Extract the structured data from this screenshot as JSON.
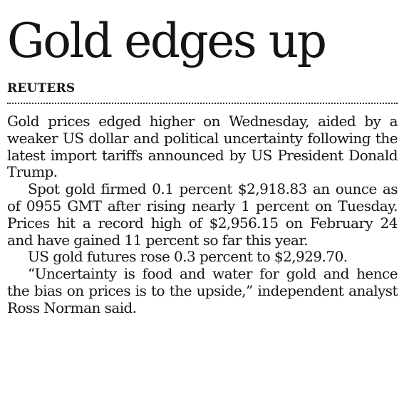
{
  "article": {
    "headline": "Gold edges up",
    "byline": "REUTERS",
    "paragraphs": [
      "Gold prices edged higher on Wednesday, aided by a weaker US dollar and political uncertainty following the latest import tariffs announced by US President Donald Trump.",
      "Spot gold firmed 0.1 percent $2,918.83 an ounce as of 0955 GMT after rising nearly 1 percent on Tuesday. Prices hit a record high of $2,956.15 on February 24 and have gained 11 percent so far this year.",
      "US gold futures rose 0.3 percent to $2,929.70.",
      "“Uncertainty is food and water for gold and hence the bias on prices is to the upside,” independent analyst Ross Norman said."
    ]
  }
}
